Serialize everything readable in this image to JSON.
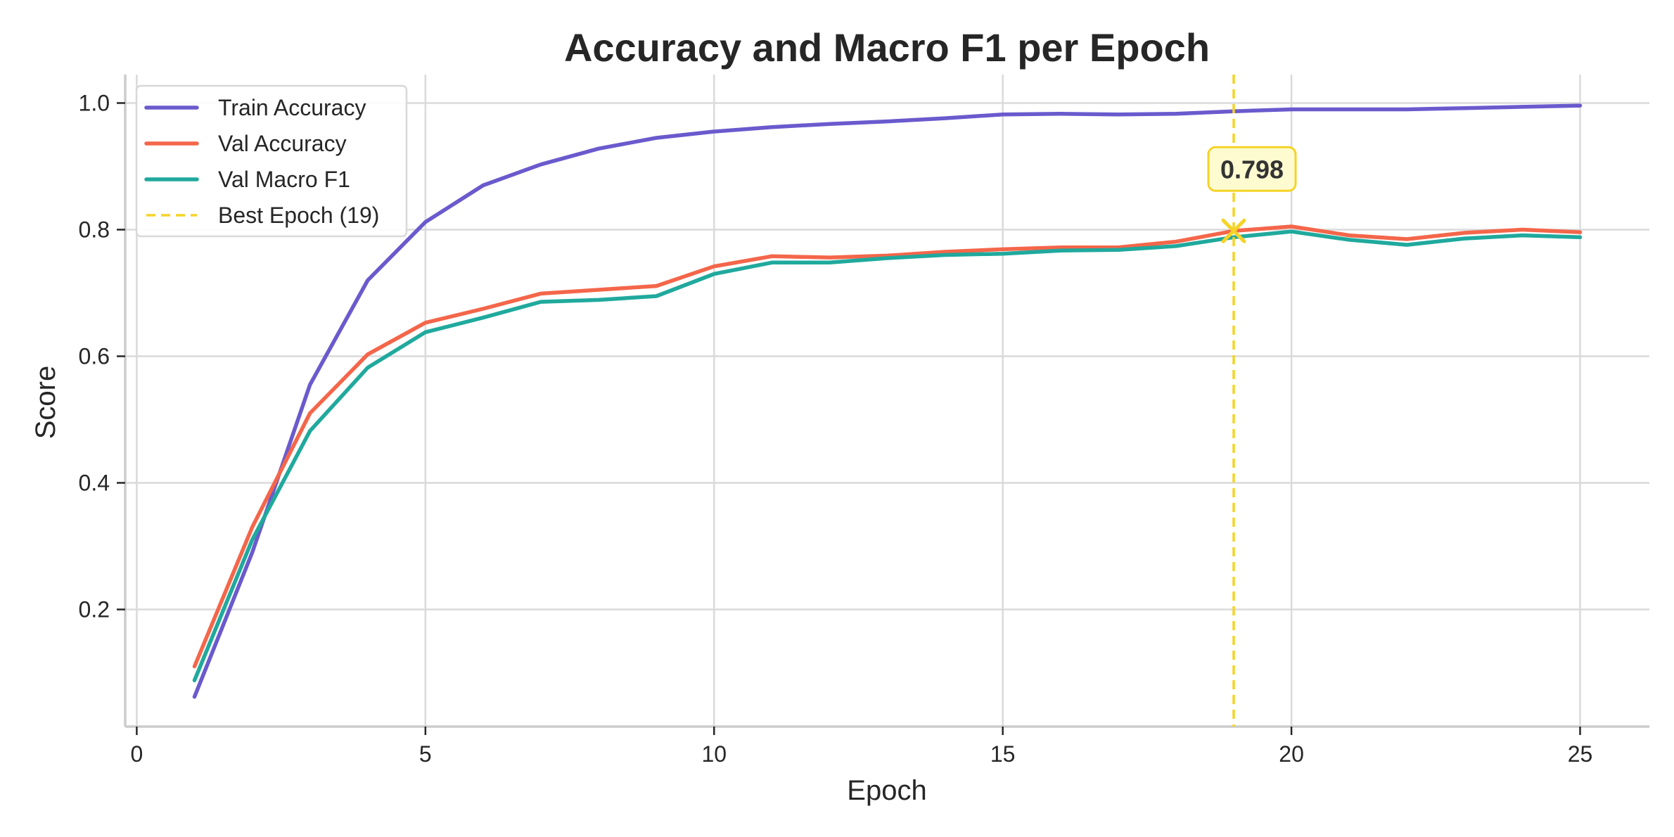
{
  "chart_data": {
    "type": "line",
    "title": "Accuracy and Macro F1 per Epoch",
    "xlabel": "Epoch",
    "ylabel": "Score",
    "xlim": [
      -0.2,
      26.2
    ],
    "ylim": [
      0.015,
      1.045
    ],
    "xticks": [
      0,
      5,
      10,
      15,
      20,
      25
    ],
    "yticks": [
      0.2,
      0.4,
      0.6,
      0.8,
      1.0
    ],
    "xtick_labels": [
      "0",
      "5",
      "10",
      "15",
      "20",
      "25"
    ],
    "ytick_labels": [
      "0.2",
      "0.4",
      "0.6",
      "0.8",
      "1.0"
    ],
    "grid": true,
    "legend_position": "top-left",
    "x": [
      1,
      2,
      3,
      4,
      5,
      6,
      7,
      8,
      9,
      10,
      11,
      12,
      13,
      14,
      15,
      16,
      17,
      18,
      19,
      20,
      21,
      22,
      23,
      24,
      25
    ],
    "series": [
      {
        "name": "Train Accuracy",
        "color": "#6a5acd",
        "values": [
          0.062,
          0.29,
          0.555,
          0.72,
          0.812,
          0.87,
          0.903,
          0.928,
          0.945,
          0.955,
          0.962,
          0.967,
          0.971,
          0.976,
          0.982,
          0.983,
          0.982,
          0.983,
          0.987,
          0.99,
          0.99,
          0.99,
          0.992,
          0.994,
          0.996
        ]
      },
      {
        "name": "Val Accuracy",
        "color": "#f4664a",
        "values": [
          0.11,
          0.33,
          0.51,
          0.603,
          0.653,
          0.675,
          0.699,
          0.705,
          0.711,
          0.742,
          0.758,
          0.756,
          0.759,
          0.765,
          0.769,
          0.772,
          0.772,
          0.781,
          0.798,
          0.805,
          0.791,
          0.785,
          0.795,
          0.8,
          0.796
        ]
      },
      {
        "name": "Val Macro F1",
        "color": "#20a99d",
        "values": [
          0.088,
          0.31,
          0.482,
          0.582,
          0.638,
          0.661,
          0.686,
          0.689,
          0.695,
          0.73,
          0.748,
          0.748,
          0.755,
          0.76,
          0.762,
          0.767,
          0.768,
          0.774,
          0.788,
          0.797,
          0.784,
          0.776,
          0.786,
          0.791,
          0.788
        ]
      }
    ],
    "best_epoch": {
      "label": "Best Epoch (19)",
      "epoch": 19,
      "value": 0.798,
      "annotation": "0.798",
      "color": "#f5d327"
    }
  }
}
